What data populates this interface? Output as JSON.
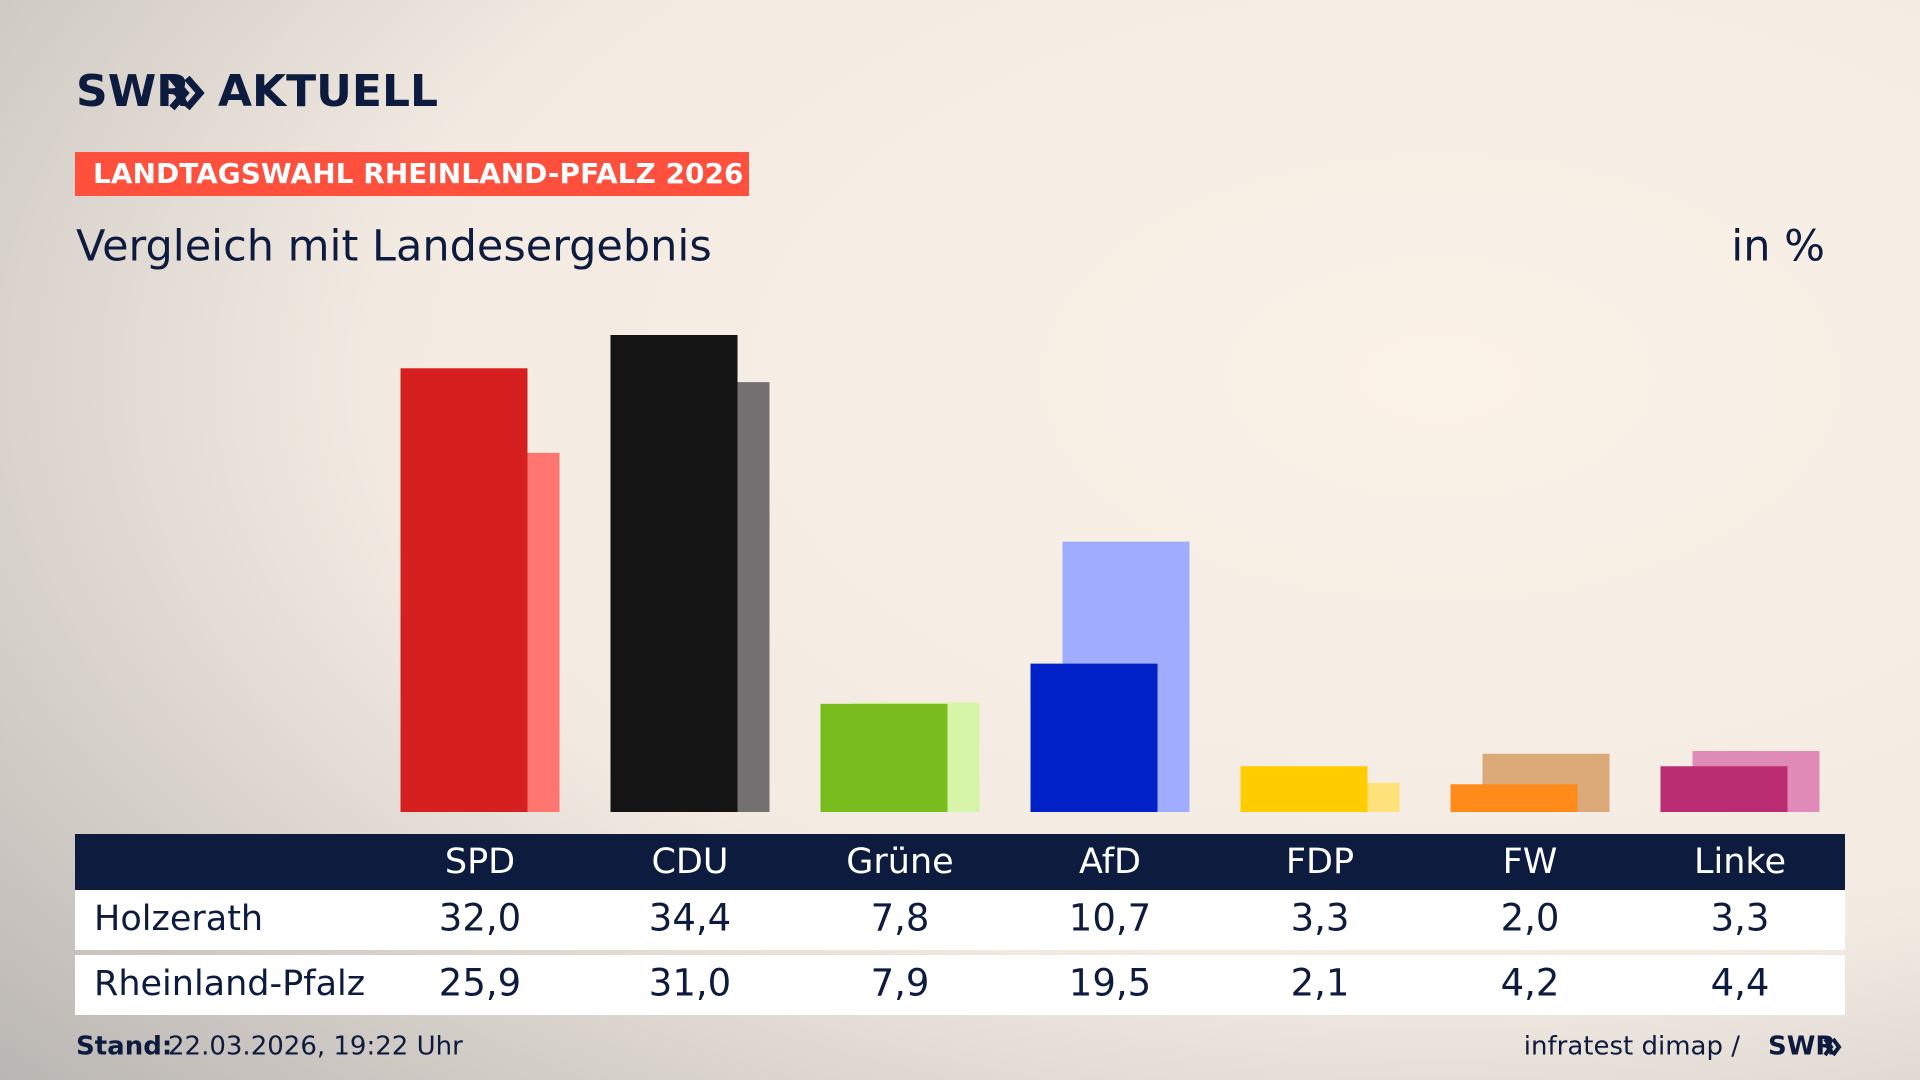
{
  "header": {
    "brand": "SWR",
    "brand_suffix": "AKTUELL",
    "banner": "LANDTAGSWAHL RHEINLAND-PFALZ 2026"
  },
  "chart_data": {
    "type": "bar",
    "title": "Vergleich mit Landesergebnis",
    "unit": "in %",
    "categories": [
      "SPD",
      "CDU",
      "Grüne",
      "AfD",
      "FDP",
      "FW",
      "Linke"
    ],
    "series": [
      {
        "name": "Holzerath",
        "colors": [
          "#d62020",
          "#141414",
          "#78bc1e",
          "#0021c8",
          "#ffcc00",
          "#ff8c1a",
          "#bb2d72"
        ],
        "values": [
          32.0,
          34.4,
          7.8,
          10.7,
          3.3,
          2.0,
          3.3
        ],
        "value_labels": [
          "32,0",
          "34,4",
          "7,8",
          "10,7",
          "3,3",
          "2,0",
          "3,3"
        ]
      },
      {
        "name": "Rheinland-Pfalz",
        "colors": [
          "#ff7570",
          "#727070",
          "#d6f5a8",
          "#a0adff",
          "#ffe17a",
          "#dcaa78",
          "#e08ab8"
        ],
        "values": [
          25.9,
          31.0,
          7.9,
          19.5,
          2.1,
          4.2,
          4.4
        ],
        "value_labels": [
          "25,9",
          "31,0",
          "7,9",
          "19,5",
          "2,1",
          "4,2",
          "4,4"
        ]
      }
    ]
  },
  "footer": {
    "stand_label": "Stand:",
    "stand": "22.03.2026, 19:22 Uhr",
    "source": "infratest dimap /",
    "brand": "SWR"
  }
}
